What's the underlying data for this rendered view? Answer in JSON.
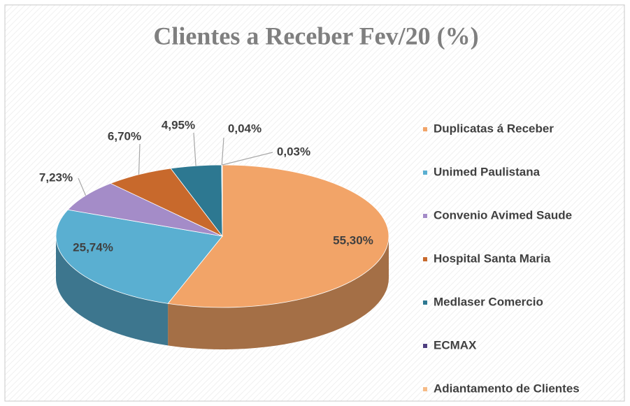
{
  "chart_data": {
    "type": "pie",
    "title": "Clientes a Receber Fev/20 (%)",
    "categories": [
      "Duplicatas á Receber",
      "Unimed Paulistana",
      "Convenio Avimed Saude",
      "Hospital Santa Maria",
      "Medlaser Comercio",
      "ECMAX",
      "Adiantamento de Clientes"
    ],
    "values": [
      55.3,
      25.74,
      7.23,
      6.7,
      4.95,
      0.04,
      0.03
    ],
    "value_labels": [
      "55,30%",
      "25,74%",
      "7,23%",
      "6,70%",
      "4,95%",
      "0,04%",
      "0,03%"
    ],
    "colors": [
      "#f2a468",
      "#5aafd1",
      "#a48cc8",
      "#c8692c",
      "#2d7891",
      "#4f3f80",
      "#f6bb86"
    ],
    "legend": "right"
  }
}
